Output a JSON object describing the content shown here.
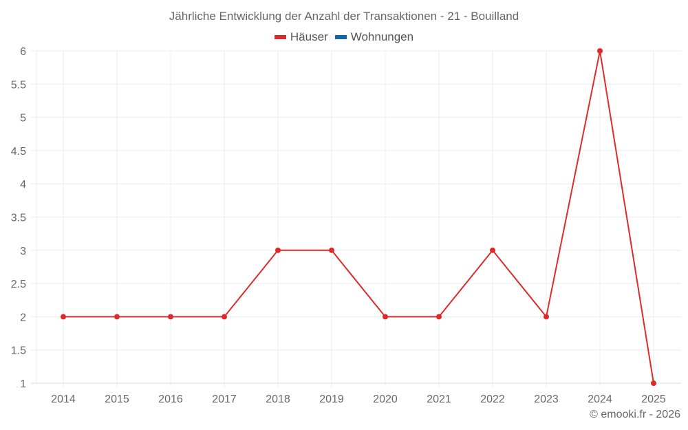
{
  "header": {
    "title": "Jährliche Entwicklung der Anzahl der Transaktionen - 21 - Bouilland"
  },
  "legend": [
    {
      "label": "Häuser",
      "color": "#dd2a2a"
    },
    {
      "label": "Wohnungen",
      "color": "#1565a8"
    }
  ],
  "footer": {
    "credit": "© emooki.fr - 2026"
  },
  "chart_data": {
    "type": "line",
    "title": "Jährliche Entwicklung der Anzahl der Transaktionen - 21 - Bouilland",
    "xlabel": "",
    "ylabel": "",
    "categories": [
      "2014",
      "2015",
      "2016",
      "2017",
      "2018",
      "2019",
      "2020",
      "2021",
      "2022",
      "2023",
      "2024",
      "2025"
    ],
    "series": [
      {
        "name": "Häuser",
        "color": "#dd2a2a",
        "values": [
          2,
          2,
          2,
          2,
          3,
          3,
          2,
          2,
          3,
          2,
          6,
          1
        ]
      },
      {
        "name": "Wohnungen",
        "color": "#1565a8",
        "values": []
      }
    ],
    "yticks": [
      "1",
      "1.5",
      "2",
      "2.5",
      "3",
      "3.5",
      "4",
      "4.5",
      "5",
      "5.5",
      "6"
    ],
    "ylim": [
      1,
      6
    ],
    "grid": true,
    "legend_position": "top"
  }
}
